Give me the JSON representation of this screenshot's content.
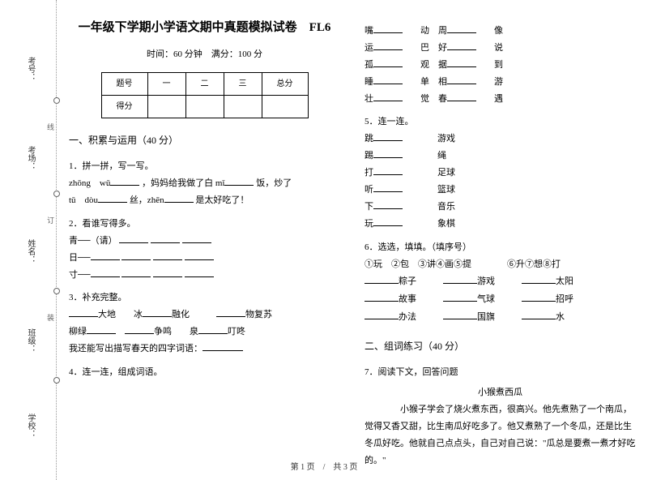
{
  "binding": {
    "labels": [
      "考号：",
      "考场：",
      "姓名：",
      "班级：",
      "学校："
    ],
    "cuts": [
      "线",
      "订",
      "装"
    ]
  },
  "title": "一年级下学期小学语文期中真题模拟试卷　FL6",
  "subtitle": "时间：60 分钟　满分：100 分",
  "scoreTable": {
    "headRow": [
      "题号",
      "一",
      "二",
      "三",
      "总分"
    ],
    "scoreRow": [
      "得分",
      "",
      "",
      "",
      ""
    ]
  },
  "sectionA": "一、积累与运用（40 分）",
  "q1": {
    "num": "1．拼一拼，写一写。",
    "line1a": "zhōng　wǔ",
    "line1b": "，妈妈给我做了白 mǐ",
    "line1c": "饭，炒了",
    "line2a": "tǔ　dòu",
    "line2b": "丝，zhēn",
    "line2c": "是太好吃了！"
  },
  "q2": {
    "num": "2．看谁写得多。",
    "a": "青──（请）",
    "b": "日──",
    "c": "寸──"
  },
  "q3": {
    "num": "3．补充完整。",
    "r1a": "大地　　冰",
    "r1b": "融化",
    "r1c": "物复苏",
    "r2a": "柳绿",
    "r2b": "争鸣　　泉",
    "r2c": "叮咚",
    "r3": "我还能写出描写春天的四字词语："
  },
  "q4": {
    "num": "4．连一连，组成词语。",
    "left": [
      "嘴",
      "运",
      "孤",
      "睡",
      "壮"
    ],
    "mid": [
      "动",
      "巴",
      "观",
      "单",
      "觉"
    ],
    "right1": [
      "周",
      "好",
      "据",
      "相",
      "春"
    ],
    "right2": [
      "像",
      "说",
      "到",
      "游",
      "遇"
    ]
  },
  "q5": {
    "num": "5．连一连。",
    "pairs": [
      [
        "跳",
        "游戏"
      ],
      [
        "踢",
        "绳"
      ],
      [
        "打",
        "足球"
      ],
      [
        "听",
        "篮球"
      ],
      [
        "下",
        "音乐"
      ],
      [
        "玩",
        "象棋"
      ]
    ]
  },
  "q6": {
    "num": "6．选选，填填。（填序号）",
    "opts": "①玩　②包　③讲④画⑤提　　　　⑥升⑦想⑧打",
    "words": [
      [
        "粽子",
        "游戏",
        "太阳"
      ],
      [
        "故事",
        "气球",
        "招呼"
      ],
      [
        "办法",
        "国旗",
        "水"
      ]
    ]
  },
  "sectionB": "二、组词练习（40 分）",
  "q7": {
    "num": "7．阅读下文，回答问题",
    "title": "小猴煮西瓜",
    "body": "　　小猴子学会了烧火煮东西，很高兴。他先煮熟了一个南瓜，觉得又香又甜，比生南瓜好吃多了。他又煮熟了一个冬瓜，还是比生冬瓜好吃。他就自己点点头，自己对自己说：\"瓜总是要煮一煮才好吃的。\""
  },
  "footer": "第 1 页　/　共 3 页"
}
